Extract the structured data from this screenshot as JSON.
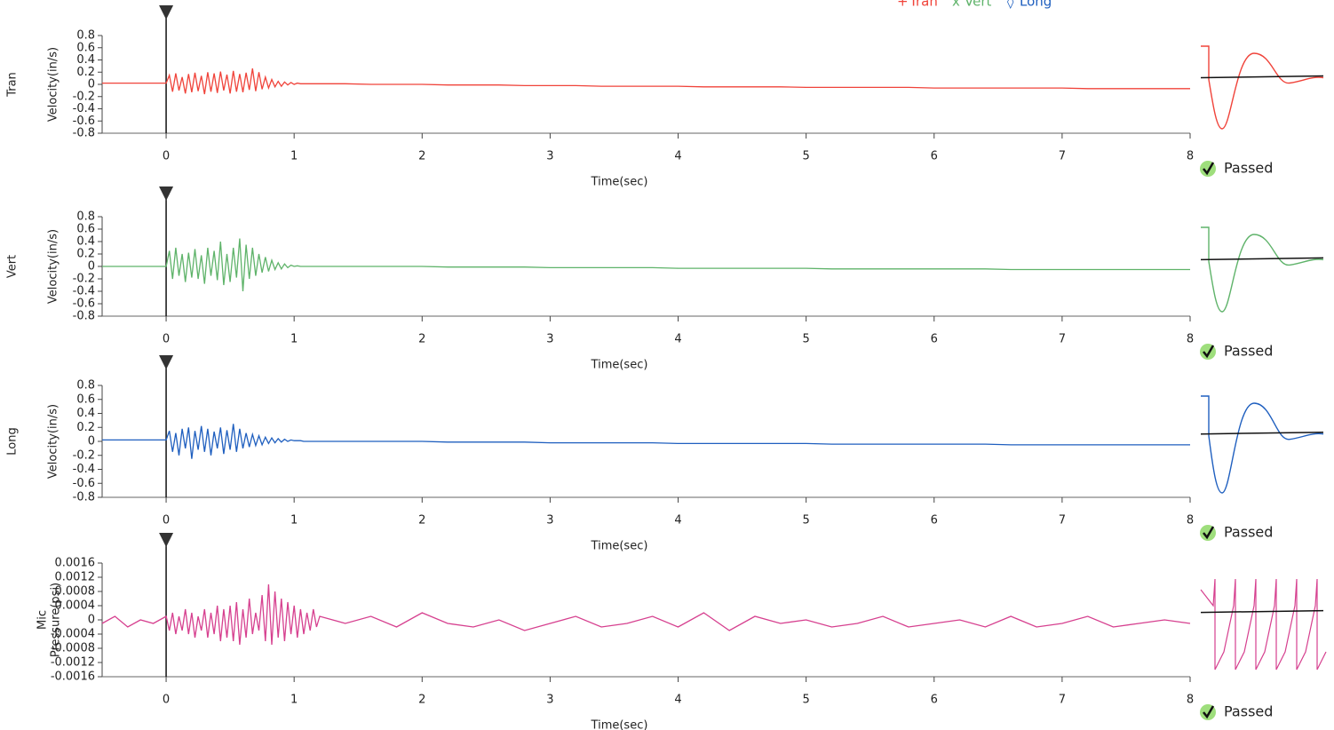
{
  "chart_data": [
    {
      "type": "line",
      "xlabel": "Time(sec)",
      "ylabel": "Velocity(in/s)",
      "status": "Passed",
      "legend": true,
      "xlim": [
        -0.5,
        8
      ],
      "xticks": [
        0,
        1,
        2,
        3,
        4,
        5,
        6,
        7,
        8
      ],
      "ylim": [
        -0.8,
        0.8
      ],
      "yticks": [
        0.8,
        0.6,
        0.4,
        0.2,
        0,
        -0.2,
        -0.4,
        -0.6,
        -0.8
      ],
      "x": [
        -0.5,
        -0.4,
        -0.3,
        -0.2,
        -0.1,
        0,
        0.025,
        0.05,
        0.075,
        0.1,
        0.125,
        0.15,
        0.175,
        0.2,
        0.225,
        0.25,
        0.275,
        0.3,
        0.325,
        0.35,
        0.375,
        0.4,
        0.425,
        0.45,
        0.475,
        0.5,
        0.525,
        0.55,
        0.575,
        0.6,
        0.625,
        0.65,
        0.675,
        0.7,
        0.725,
        0.75,
        0.775,
        0.8,
        0.825,
        0.85,
        0.875,
        0.9,
        0.925,
        0.95,
        0.975,
        1,
        1.025,
        1.05,
        1.075,
        1.1,
        1.125,
        1.15,
        1.175,
        1.2,
        1.4,
        1.6,
        1.8,
        2,
        2.2,
        2.4,
        2.6,
        2.8,
        3,
        3.2,
        3.4,
        3.6,
        3.8,
        4,
        4.2,
        4.4,
        4.6,
        4.8,
        5,
        5.2,
        5.4,
        5.6,
        5.8,
        6,
        6.2,
        6.4,
        6.6,
        6.8,
        7,
        7.2,
        7.4,
        7.6,
        7.8,
        8
      ],
      "series": [
        {
          "name": "Tran",
          "color": "#f0433a",
          "values": [
            0.02,
            0.02,
            0.02,
            0.02,
            0.02,
            0.02,
            0.15,
            -0.12,
            0.18,
            -0.1,
            0.12,
            -0.15,
            0.17,
            -0.13,
            0.19,
            -0.11,
            0.14,
            -0.16,
            0.2,
            -0.12,
            0.18,
            -0.14,
            0.21,
            -0.1,
            0.16,
            -0.15,
            0.22,
            -0.12,
            0.17,
            -0.13,
            0.19,
            -0.09,
            0.26,
            -0.11,
            0.2,
            -0.08,
            0.12,
            -0.06,
            0.08,
            -0.04,
            0.05,
            -0.03,
            0.04,
            -0.01,
            0.03,
            0,
            0.02,
            0.01,
            0.01,
            0.01,
            0.01,
            0.01,
            0.01,
            0.01,
            0.01,
            0,
            0,
            0,
            -0.01,
            -0.01,
            -0.01,
            -0.02,
            -0.02,
            -0.02,
            -0.03,
            -0.03,
            -0.03,
            -0.03,
            -0.04,
            -0.04,
            -0.04,
            -0.04,
            -0.05,
            -0.05,
            -0.05,
            -0.05,
            -0.05,
            -0.06,
            -0.06,
            -0.06,
            -0.06,
            -0.06,
            -0.06,
            -0.07,
            -0.07,
            -0.07,
            -0.07,
            -0.07
          ]
        }
      ]
    },
    {
      "type": "line",
      "xlabel": "Time(sec)",
      "ylabel": "Velocity(in/s)",
      "status": "Passed",
      "legend": true,
      "xlim": [
        -0.5,
        8
      ],
      "xticks": [
        0,
        1,
        2,
        3,
        4,
        5,
        6,
        7,
        8
      ],
      "ylim": [
        -0.8,
        0.8
      ],
      "yticks": [
        0.8,
        0.6,
        0.4,
        0.2,
        0,
        -0.2,
        -0.4,
        -0.6,
        -0.8
      ],
      "x": [
        -0.5,
        -0.4,
        -0.3,
        -0.2,
        -0.1,
        0,
        0.025,
        0.05,
        0.075,
        0.1,
        0.125,
        0.15,
        0.175,
        0.2,
        0.225,
        0.25,
        0.275,
        0.3,
        0.325,
        0.35,
        0.375,
        0.4,
        0.425,
        0.45,
        0.475,
        0.5,
        0.525,
        0.55,
        0.575,
        0.6,
        0.625,
        0.65,
        0.675,
        0.7,
        0.725,
        0.75,
        0.775,
        0.8,
        0.825,
        0.85,
        0.875,
        0.9,
        0.925,
        0.95,
        0.975,
        1,
        1.025,
        1.05,
        1.075,
        1.1,
        1.125,
        1.15,
        1.175,
        1.2,
        1.4,
        1.6,
        1.8,
        2,
        2.2,
        2.4,
        2.6,
        2.8,
        3,
        3.2,
        3.4,
        3.6,
        3.8,
        4,
        4.2,
        4.4,
        4.6,
        4.8,
        5,
        5.2,
        5.4,
        5.6,
        5.8,
        6,
        6.2,
        6.4,
        6.6,
        6.8,
        7,
        7.2,
        7.4,
        7.6,
        7.8,
        8
      ],
      "series": [
        {
          "name": "Vert",
          "color": "#5fb36a",
          "values": [
            0,
            0,
            0,
            0,
            0,
            0,
            0.25,
            -0.2,
            0.3,
            -0.15,
            0.2,
            -0.25,
            0.22,
            -0.18,
            0.28,
            -0.2,
            0.18,
            -0.28,
            0.3,
            -0.15,
            0.25,
            -0.22,
            0.4,
            -0.3,
            0.2,
            -0.25,
            0.3,
            -0.18,
            0.45,
            -0.4,
            0.35,
            -0.2,
            0.3,
            -0.15,
            0.2,
            -0.1,
            0.15,
            -0.08,
            0.1,
            -0.05,
            0.06,
            -0.04,
            0.04,
            -0.02,
            0.02,
            0,
            0.01,
            0,
            0,
            0,
            0,
            0,
            0,
            0,
            0,
            0,
            0,
            0,
            -0.01,
            -0.01,
            -0.01,
            -0.01,
            -0.02,
            -0.02,
            -0.02,
            -0.02,
            -0.02,
            -0.03,
            -0.03,
            -0.03,
            -0.03,
            -0.03,
            -0.03,
            -0.04,
            -0.04,
            -0.04,
            -0.04,
            -0.04,
            -0.04,
            -0.04,
            -0.05,
            -0.05,
            -0.05,
            -0.05,
            -0.05,
            -0.05,
            -0.05,
            -0.05
          ]
        }
      ]
    },
    {
      "type": "line",
      "xlabel": "Time(sec)",
      "ylabel": "Velocity(in/s)",
      "status": "Passed",
      "legend": true,
      "xlim": [
        -0.5,
        8
      ],
      "xticks": [
        0,
        1,
        2,
        3,
        4,
        5,
        6,
        7,
        8
      ],
      "ylim": [
        -0.8,
        0.8
      ],
      "yticks": [
        0.8,
        0.6,
        0.4,
        0.2,
        0,
        -0.2,
        -0.4,
        -0.6,
        -0.8
      ],
      "x": [
        -0.5,
        -0.4,
        -0.3,
        -0.2,
        -0.1,
        0,
        0.025,
        0.05,
        0.075,
        0.1,
        0.125,
        0.15,
        0.175,
        0.2,
        0.225,
        0.25,
        0.275,
        0.3,
        0.325,
        0.35,
        0.375,
        0.4,
        0.425,
        0.45,
        0.475,
        0.5,
        0.525,
        0.55,
        0.575,
        0.6,
        0.625,
        0.65,
        0.675,
        0.7,
        0.725,
        0.75,
        0.775,
        0.8,
        0.825,
        0.85,
        0.875,
        0.9,
        0.925,
        0.95,
        0.975,
        1,
        1.025,
        1.05,
        1.075,
        1.1,
        1.125,
        1.15,
        1.175,
        1.2,
        1.4,
        1.6,
        1.8,
        2,
        2.2,
        2.4,
        2.6,
        2.8,
        3,
        3.2,
        3.4,
        3.6,
        3.8,
        4,
        4.2,
        4.4,
        4.6,
        4.8,
        5,
        5.2,
        5.4,
        5.6,
        5.8,
        6,
        6.2,
        6.4,
        6.6,
        6.8,
        7,
        7.2,
        7.4,
        7.6,
        7.8,
        8
      ],
      "series": [
        {
          "name": "Long",
          "color": "#1f5fbf",
          "values": [
            0.02,
            0.02,
            0.02,
            0.02,
            0.02,
            0.02,
            0.15,
            -0.15,
            0.12,
            -0.2,
            0.18,
            -0.1,
            0.2,
            -0.25,
            0.15,
            -0.12,
            0.22,
            -0.15,
            0.18,
            -0.2,
            0.14,
            -0.1,
            0.2,
            -0.18,
            0.16,
            -0.12,
            0.25,
            -0.15,
            0.18,
            -0.1,
            0.12,
            -0.08,
            0.1,
            -0.06,
            0.08,
            -0.05,
            0.06,
            -0.03,
            0.05,
            -0.02,
            0.04,
            -0.01,
            0.03,
            0,
            0.02,
            0.01,
            0.01,
            0.01,
            0,
            0,
            0,
            0,
            0,
            0,
            0,
            0,
            0,
            0,
            -0.01,
            -0.01,
            -0.01,
            -0.01,
            -0.02,
            -0.02,
            -0.02,
            -0.02,
            -0.02,
            -0.03,
            -0.03,
            -0.03,
            -0.03,
            -0.03,
            -0.03,
            -0.04,
            -0.04,
            -0.04,
            -0.04,
            -0.04,
            -0.04,
            -0.04,
            -0.05,
            -0.05,
            -0.05,
            -0.05,
            -0.05,
            -0.05,
            -0.05,
            -0.05
          ]
        }
      ]
    },
    {
      "type": "line",
      "xlabel": "Time(sec)",
      "ylabel": "Pressure(psi)",
      "status": "Passed",
      "legend": false,
      "xlim": [
        -0.5,
        8
      ],
      "xticks": [
        0,
        1,
        2,
        3,
        4,
        5,
        6,
        7,
        8
      ],
      "ylim": [
        -0.0016,
        0.0016
      ],
      "yticks": [
        0.0016,
        0.0012,
        0.0008,
        0.0004,
        0,
        -0.0004,
        -0.0008,
        -0.0012,
        -0.0016
      ],
      "x": [
        -0.5,
        -0.4,
        -0.3,
        -0.2,
        -0.1,
        0,
        0.025,
        0.05,
        0.075,
        0.1,
        0.125,
        0.15,
        0.175,
        0.2,
        0.225,
        0.25,
        0.275,
        0.3,
        0.325,
        0.35,
        0.375,
        0.4,
        0.425,
        0.45,
        0.475,
        0.5,
        0.525,
        0.55,
        0.575,
        0.6,
        0.625,
        0.65,
        0.675,
        0.7,
        0.725,
        0.75,
        0.775,
        0.8,
        0.825,
        0.85,
        0.875,
        0.9,
        0.925,
        0.95,
        0.975,
        1,
        1.025,
        1.05,
        1.075,
        1.1,
        1.125,
        1.15,
        1.175,
        1.2,
        1.4,
        1.6,
        1.8,
        2,
        2.2,
        2.4,
        2.6,
        2.8,
        3,
        3.2,
        3.4,
        3.6,
        3.8,
        4,
        4.2,
        4.4,
        4.6,
        4.8,
        5,
        5.2,
        5.4,
        5.6,
        5.8,
        6,
        6.2,
        6.4,
        6.6,
        6.8,
        7,
        7.2,
        7.4,
        7.6,
        7.8,
        8
      ],
      "series": [
        {
          "name": "Mic",
          "color": "#d6408f",
          "values": [
            -0.0001,
            0.0001,
            -0.0002,
            0,
            -0.0001,
            0.0001,
            -0.0003,
            0.0002,
            -0.0004,
            0.0001,
            -0.0003,
            0.0003,
            -0.0004,
            0.0002,
            -0.0005,
            0.0001,
            -0.0003,
            0.0003,
            -0.0005,
            0.0002,
            -0.0004,
            0.0004,
            -0.0006,
            0.0003,
            -0.0005,
            0.0004,
            -0.0006,
            0.0005,
            -0.0007,
            0.0003,
            -0.0005,
            0.0006,
            -0.0004,
            0.0002,
            -0.0003,
            0.0007,
            -0.0006,
            0.001,
            -0.0007,
            0.0008,
            -0.0005,
            0.0006,
            -0.0006,
            0.0005,
            -0.0004,
            0.0004,
            -0.0005,
            0.0003,
            -0.0004,
            0.0002,
            -0.0003,
            0.0003,
            -0.0002,
            0.0001,
            -0.0001,
            0.0001,
            -0.0002,
            0.0002,
            -0.0001,
            -0.0002,
            0,
            -0.0003,
            -0.0001,
            0.0001,
            -0.0002,
            -0.0001,
            0.0001,
            -0.0002,
            0.0002,
            -0.0003,
            0.0001,
            -0.0001,
            0,
            -0.0002,
            -0.0001,
            0.0001,
            -0.0002,
            -0.0001,
            0,
            -0.0002,
            0.0001,
            -0.0002,
            -0.0001,
            0.0001,
            -0.0002,
            -0.0001,
            0,
            -0.0001
          ]
        }
      ]
    }
  ]
}
